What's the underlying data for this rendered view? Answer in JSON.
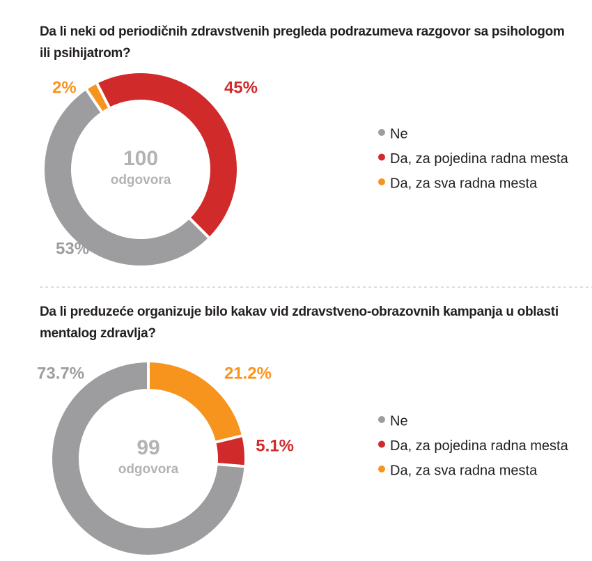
{
  "chart_data": [
    {
      "type": "donut",
      "title": "Da li neki od periodičnih zdravstvenih pregleda podrazumeva razgovor sa psihologom ili psihijatrom?",
      "categories": [
        "Ne",
        "Da, za pojedina radna mesta",
        "Da, za sva radna mesta"
      ],
      "values": [
        53,
        45,
        2
      ],
      "value_labels": [
        "53%",
        "45%",
        "2%"
      ],
      "colors": [
        "#9d9da0",
        "#d02a2b",
        "#f7941e"
      ],
      "total": 100,
      "total_label": "odgovora"
    },
    {
      "type": "donut",
      "title": "Da li preduzeće organizuje bilo kakav vid zdravstveno-obrazovnih kampanja u oblasti mentalog zdravlja?",
      "categories": [
        "Ne",
        "Da, za pojedina radna mesta",
        "Da, za sva radna mesta"
      ],
      "values": [
        73.7,
        5.1,
        21.2
      ],
      "value_labels": [
        "73.7%",
        "5.1%",
        "21.2%"
      ],
      "colors": [
        "#9d9da0",
        "#d02a2b",
        "#f7941e"
      ],
      "total": 99,
      "total_label": "odgovora"
    }
  ]
}
